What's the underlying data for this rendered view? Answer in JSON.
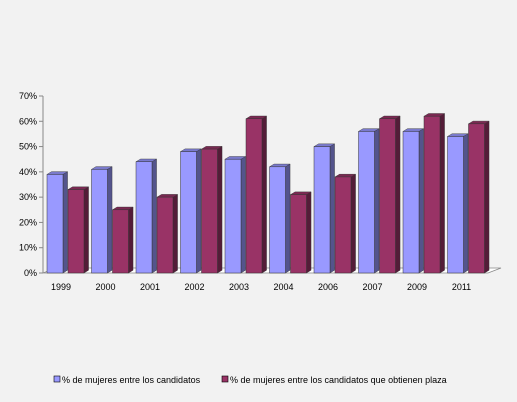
{
  "chart_data": {
    "type": "bar",
    "categories": [
      "1999",
      "2000",
      "2001",
      "2002",
      "2003",
      "2004",
      "2006",
      "2007",
      "2009",
      "2011"
    ],
    "series": [
      {
        "name": "% de mujeres entre los candidatos",
        "values": [
          39,
          41,
          44,
          48,
          45,
          42,
          50,
          56,
          56,
          54
        ],
        "color": "#9999ff"
      },
      {
        "name": "% de mujeres entre los candidatos que obtienen plaza",
        "values": [
          33,
          25,
          30,
          49,
          61,
          31,
          38,
          61,
          62,
          59
        ],
        "color": "#993366"
      }
    ],
    "y_ticks": [
      "0%",
      "10%",
      "20%",
      "30%",
      "40%",
      "50%",
      "60%",
      "70%"
    ],
    "ylim": [
      0,
      70
    ],
    "grid": false,
    "legend_position": "bottom"
  }
}
